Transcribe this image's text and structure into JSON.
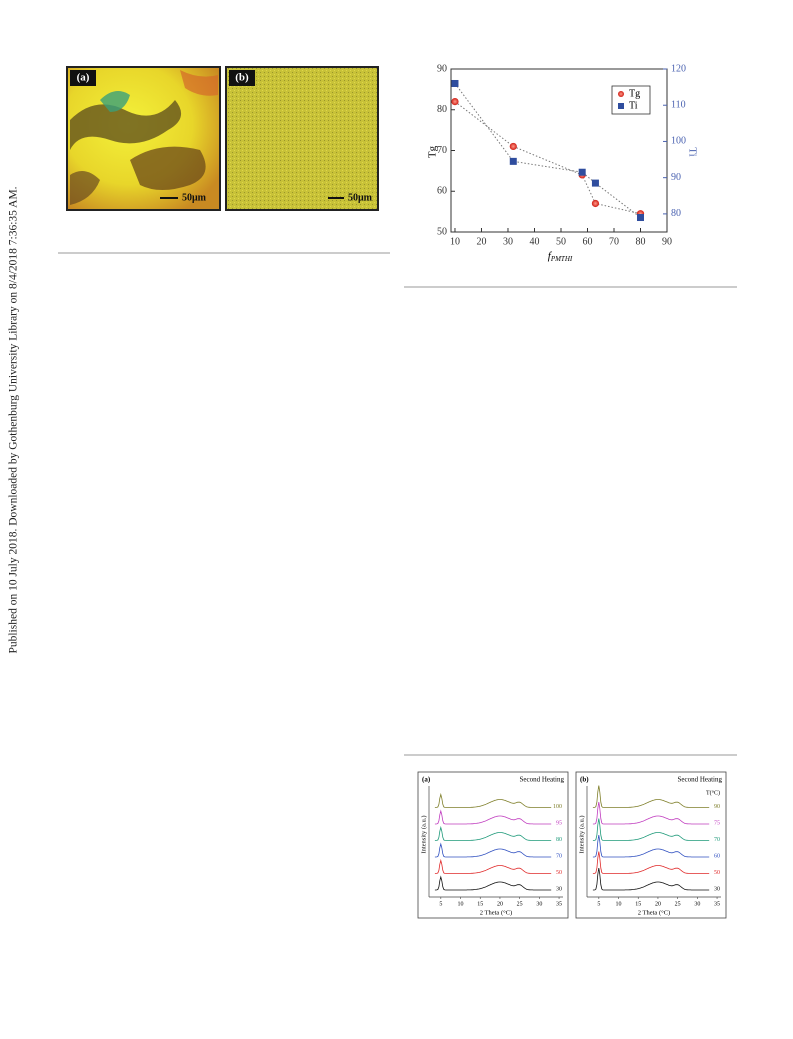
{
  "sidebar": "Published on 10 July 2018. Downloaded by Gothenburg University Library on 8/4/2018 7:36:35 AM.",
  "figure1": {
    "panels": [
      {
        "label": "(a)",
        "scale": "50μm"
      },
      {
        "label": "(b)",
        "scale": "50μm"
      }
    ]
  },
  "chart_data": [
    {
      "type": "scatter",
      "x_label": "f",
      "x_label_sub": "PMTHI",
      "y_label": "Tg",
      "y2_label": "Ti",
      "xlim": [
        8.5,
        90
      ],
      "xticks": [
        10,
        20,
        30,
        40,
        50,
        60,
        70,
        80,
        90
      ],
      "ylim": [
        50,
        90
      ],
      "yticks": [
        50,
        60,
        70,
        80,
        90
      ],
      "y2lim": [
        75,
        120
      ],
      "y2ticks": [
        80,
        90,
        100,
        110,
        120
      ],
      "legend": "upper right",
      "series": [
        {
          "name": "Tg",
          "color": "#e8322a",
          "marker": "circle",
          "x": [
            10,
            32,
            58,
            63,
            80
          ],
          "values": [
            82,
            71,
            64,
            57,
            54.5
          ]
        },
        {
          "name": "Ti",
          "color": "#2f4d9e",
          "marker": "square",
          "axis": "y2",
          "x": [
            10,
            32,
            58,
            63,
            80
          ],
          "values": [
            116,
            94.5,
            91.5,
            88.5,
            79
          ]
        }
      ]
    }
  ],
  "figure3": {
    "y_label": "Intensity (a.u.)",
    "x_label": "2 Theta (°C)",
    "xticks": [
      5,
      10,
      15,
      20,
      25,
      30,
      35
    ],
    "panels": [
      {
        "label": "(a)",
        "title": "Second Heating",
        "temps": [
          "100",
          "95",
          "80",
          "70",
          "50",
          "30"
        ]
      },
      {
        "label": "(b)",
        "title": "Second Heating",
        "unit": "T(°C)",
        "temps": [
          "90",
          "75",
          "70",
          "60",
          "50",
          "30"
        ]
      }
    ]
  }
}
